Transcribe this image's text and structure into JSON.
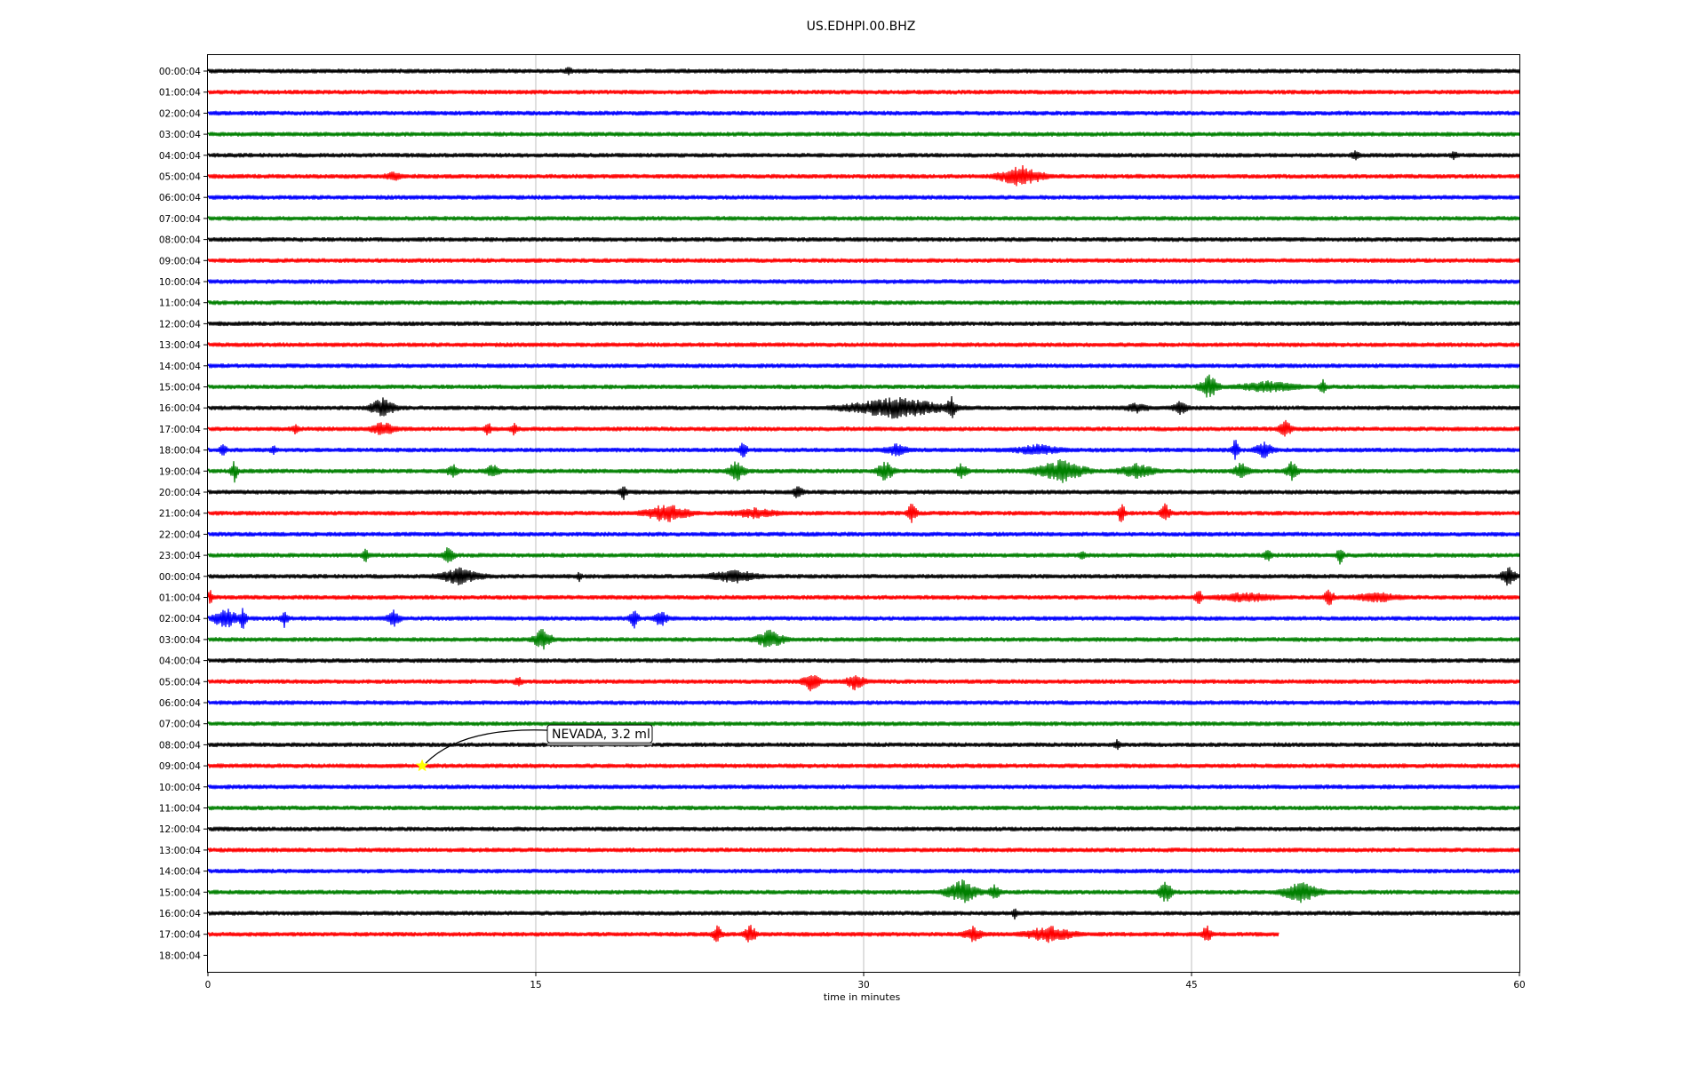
{
  "chart_data": {
    "type": "line",
    "title": "US.EDHPI.00.BHZ",
    "xlabel": "time in minutes",
    "ylabel": "",
    "xlim": [
      0,
      60
    ],
    "x_ticks": [
      "0",
      "15",
      "30",
      "45",
      "60"
    ],
    "vertical_grid_minutes": [
      15,
      30,
      45
    ],
    "trace_colors": [
      "#000000",
      "#ff0000",
      "#0000ff",
      "#008000"
    ],
    "row_labels": [
      "00:00:04",
      "01:00:04",
      "02:00:04",
      "03:00:04",
      "04:00:04",
      "05:00:04",
      "06:00:04",
      "07:00:04",
      "08:00:04",
      "09:00:04",
      "10:00:04",
      "11:00:04",
      "12:00:04",
      "13:00:04",
      "14:00:04",
      "15:00:04",
      "16:00:04",
      "17:00:04",
      "18:00:04",
      "19:00:04",
      "20:00:04",
      "21:00:04",
      "22:00:04",
      "23:00:04",
      "00:00:04",
      "01:00:04",
      "02:00:04",
      "03:00:04",
      "04:00:04",
      "05:00:04",
      "06:00:04",
      "07:00:04",
      "08:00:04",
      "09:00:04",
      "10:00:04",
      "11:00:04",
      "12:00:04",
      "13:00:04",
      "14:00:04",
      "15:00:04",
      "16:00:04",
      "17:00:04",
      "18:00:04"
    ],
    "trace_end_minutes": {
      "41": 49
    },
    "bursts": [
      {
        "row": 0,
        "t": 16.5,
        "amp": 0.35,
        "dur": 0.3
      },
      {
        "row": 4,
        "t": 52.5,
        "amp": 0.35,
        "dur": 0.4
      },
      {
        "row": 4,
        "t": 57,
        "amp": 0.35,
        "dur": 0.3
      },
      {
        "row": 5,
        "t": 8.5,
        "amp": 0.35,
        "dur": 0.8
      },
      {
        "row": 5,
        "t": 37.2,
        "amp": 0.9,
        "dur": 1.8
      },
      {
        "row": 15,
        "t": 45.8,
        "amp": 1.0,
        "dur": 0.8
      },
      {
        "row": 15,
        "t": 48.5,
        "amp": 0.45,
        "dur": 2.5
      },
      {
        "row": 15,
        "t": 51,
        "amp": 0.6,
        "dur": 0.3
      },
      {
        "row": 16,
        "t": 8,
        "amp": 0.9,
        "dur": 1.0
      },
      {
        "row": 16,
        "t": 31.5,
        "amp": 0.9,
        "dur": 4.0
      },
      {
        "row": 16,
        "t": 34,
        "amp": 1.1,
        "dur": 0.4
      },
      {
        "row": 16,
        "t": 42.5,
        "amp": 0.4,
        "dur": 1.0
      },
      {
        "row": 16,
        "t": 44.5,
        "amp": 0.6,
        "dur": 0.6
      },
      {
        "row": 17,
        "t": 8,
        "amp": 0.6,
        "dur": 1.0
      },
      {
        "row": 17,
        "t": 4,
        "amp": 0.4,
        "dur": 0.3
      },
      {
        "row": 17,
        "t": 12.8,
        "amp": 0.6,
        "dur": 0.3
      },
      {
        "row": 17,
        "t": 14,
        "amp": 0.55,
        "dur": 0.3
      },
      {
        "row": 17,
        "t": 49.3,
        "amp": 0.8,
        "dur": 0.5
      },
      {
        "row": 18,
        "t": 0.7,
        "amp": 0.55,
        "dur": 0.3
      },
      {
        "row": 18,
        "t": 3,
        "amp": 0.45,
        "dur": 0.3
      },
      {
        "row": 18,
        "t": 24.5,
        "amp": 0.8,
        "dur": 0.3
      },
      {
        "row": 18,
        "t": 31.5,
        "amp": 0.5,
        "dur": 1.0
      },
      {
        "row": 18,
        "t": 38,
        "amp": 0.45,
        "dur": 2.0
      },
      {
        "row": 18,
        "t": 47,
        "amp": 1.1,
        "dur": 0.3
      },
      {
        "row": 18,
        "t": 48.3,
        "amp": 0.7,
        "dur": 0.8
      },
      {
        "row": 19,
        "t": 1.2,
        "amp": 1.0,
        "dur": 0.3
      },
      {
        "row": 19,
        "t": 11.2,
        "amp": 0.6,
        "dur": 0.5
      },
      {
        "row": 19,
        "t": 13,
        "amp": 0.6,
        "dur": 0.6
      },
      {
        "row": 19,
        "t": 24.2,
        "amp": 0.9,
        "dur": 0.7
      },
      {
        "row": 19,
        "t": 31,
        "amp": 0.9,
        "dur": 0.7
      },
      {
        "row": 19,
        "t": 34.5,
        "amp": 0.7,
        "dur": 0.5
      },
      {
        "row": 19,
        "t": 39,
        "amp": 1.0,
        "dur": 2.0
      },
      {
        "row": 19,
        "t": 42.5,
        "amp": 0.6,
        "dur": 1.5
      },
      {
        "row": 19,
        "t": 47.3,
        "amp": 0.9,
        "dur": 0.6
      },
      {
        "row": 19,
        "t": 49.6,
        "amp": 0.9,
        "dur": 0.5
      },
      {
        "row": 20,
        "t": 19,
        "amp": 0.7,
        "dur": 0.3
      },
      {
        "row": 20,
        "t": 27,
        "amp": 0.6,
        "dur": 0.4
      },
      {
        "row": 21,
        "t": 21,
        "amp": 0.8,
        "dur": 1.8
      },
      {
        "row": 21,
        "t": 25,
        "amp": 0.4,
        "dur": 2.0
      },
      {
        "row": 21,
        "t": 32.2,
        "amp": 0.9,
        "dur": 0.4
      },
      {
        "row": 21,
        "t": 41.8,
        "amp": 1.0,
        "dur": 0.3
      },
      {
        "row": 21,
        "t": 43.8,
        "amp": 0.9,
        "dur": 0.4
      },
      {
        "row": 23,
        "t": 7.2,
        "amp": 0.6,
        "dur": 0.3
      },
      {
        "row": 23,
        "t": 11,
        "amp": 0.7,
        "dur": 0.5
      },
      {
        "row": 23,
        "t": 40,
        "amp": 0.5,
        "dur": 0.3
      },
      {
        "row": 23,
        "t": 48.5,
        "amp": 0.7,
        "dur": 0.3
      },
      {
        "row": 23,
        "t": 51.8,
        "amp": 0.8,
        "dur": 0.3
      },
      {
        "row": 24,
        "t": 11.5,
        "amp": 0.7,
        "dur": 1.8
      },
      {
        "row": 24,
        "t": 17,
        "amp": 0.4,
        "dur": 0.2
      },
      {
        "row": 24,
        "t": 24,
        "amp": 0.6,
        "dur": 2.0
      },
      {
        "row": 24,
        "t": 59.5,
        "amp": 0.9,
        "dur": 0.6
      },
      {
        "row": 25,
        "t": 0.1,
        "amp": 0.7,
        "dur": 0.2
      },
      {
        "row": 25,
        "t": 45.3,
        "amp": 0.9,
        "dur": 0.3
      },
      {
        "row": 25,
        "t": 47.5,
        "amp": 0.4,
        "dur": 2.5
      },
      {
        "row": 25,
        "t": 51.3,
        "amp": 0.8,
        "dur": 0.4
      },
      {
        "row": 25,
        "t": 53.5,
        "amp": 0.4,
        "dur": 2.0
      },
      {
        "row": 26,
        "t": 0.8,
        "amp": 0.9,
        "dur": 1.0
      },
      {
        "row": 26,
        "t": 1.6,
        "amp": 1.0,
        "dur": 0.3
      },
      {
        "row": 26,
        "t": 3.5,
        "amp": 0.8,
        "dur": 0.3
      },
      {
        "row": 26,
        "t": 8.5,
        "amp": 0.7,
        "dur": 0.6
      },
      {
        "row": 26,
        "t": 19.5,
        "amp": 0.8,
        "dur": 0.4
      },
      {
        "row": 26,
        "t": 20.7,
        "amp": 0.7,
        "dur": 0.6
      },
      {
        "row": 27,
        "t": 15.3,
        "amp": 0.9,
        "dur": 0.8
      },
      {
        "row": 27,
        "t": 25.7,
        "amp": 0.8,
        "dur": 1.2
      },
      {
        "row": 29,
        "t": 14.2,
        "amp": 0.4,
        "dur": 0.4
      },
      {
        "row": 29,
        "t": 27.6,
        "amp": 1.0,
        "dur": 0.7
      },
      {
        "row": 29,
        "t": 29.6,
        "amp": 0.7,
        "dur": 0.8
      },
      {
        "row": 32,
        "t": 41.6,
        "amp": 0.4,
        "dur": 0.3
      },
      {
        "row": 39,
        "t": 34.5,
        "amp": 1.0,
        "dur": 1.3
      },
      {
        "row": 39,
        "t": 36,
        "amp": 0.6,
        "dur": 0.5
      },
      {
        "row": 39,
        "t": 43.8,
        "amp": 1.1,
        "dur": 0.5
      },
      {
        "row": 39,
        "t": 50,
        "amp": 0.9,
        "dur": 1.5
      },
      {
        "row": 40,
        "t": 36.9,
        "amp": 0.5,
        "dur": 0.2
      },
      {
        "row": 41,
        "t": 23.3,
        "amp": 0.8,
        "dur": 0.4
      },
      {
        "row": 41,
        "t": 24.8,
        "amp": 0.9,
        "dur": 0.5
      },
      {
        "row": 41,
        "t": 35,
        "amp": 0.6,
        "dur": 0.8
      },
      {
        "row": 41,
        "t": 38.5,
        "amp": 0.7,
        "dur": 2.0
      },
      {
        "row": 41,
        "t": 45.7,
        "amp": 0.8,
        "dur": 0.4
      }
    ],
    "annotation": {
      "text": "NEVADA, 3.2 ml",
      "row": 33,
      "minute": 9.8,
      "marker_color": "#ffff00"
    }
  }
}
